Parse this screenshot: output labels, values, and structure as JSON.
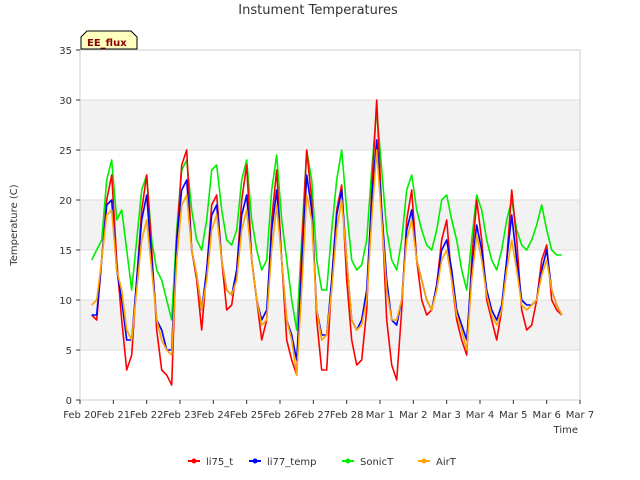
{
  "chart_data": {
    "type": "line",
    "title": "Instument Temperatures",
    "xlabel": "Time",
    "ylabel": "Temperature (C)",
    "badge": "EE_flux",
    "xlim": [
      20,
      35
    ],
    "ylim": [
      0,
      35
    ],
    "x_ticks": [
      {
        "v": 20,
        "label": "Feb 20"
      },
      {
        "v": 21,
        "label": "Feb 21"
      },
      {
        "v": 22,
        "label": "Feb 22"
      },
      {
        "v": 23,
        "label": "Feb 23"
      },
      {
        "v": 24,
        "label": "Feb 24"
      },
      {
        "v": 25,
        "label": "Feb 25"
      },
      {
        "v": 26,
        "label": "Feb 26"
      },
      {
        "v": 27,
        "label": "Feb 27"
      },
      {
        "v": 28,
        "label": "Feb 28"
      },
      {
        "v": 29,
        "label": "Mar 1"
      },
      {
        "v": 30,
        "label": "Mar 2"
      },
      {
        "v": 31,
        "label": "Mar 3"
      },
      {
        "v": 32,
        "label": "Mar 4"
      },
      {
        "v": 33,
        "label": "Mar 5"
      },
      {
        "v": 34,
        "label": "Mar 6"
      },
      {
        "v": 35,
        "label": "Mar 7"
      }
    ],
    "y_ticks": [
      0,
      5,
      10,
      15,
      20,
      25,
      30,
      35
    ],
    "grid": true,
    "legend_position": "bottom",
    "x": [
      20.35,
      20.5,
      20.65,
      20.8,
      20.95,
      21.1,
      21.25,
      21.4,
      21.55,
      21.7,
      21.85,
      22.0,
      22.15,
      22.3,
      22.45,
      22.6,
      22.75,
      22.9,
      23.05,
      23.2,
      23.35,
      23.5,
      23.65,
      23.8,
      23.95,
      24.1,
      24.25,
      24.4,
      24.55,
      24.7,
      24.85,
      25.0,
      25.15,
      25.3,
      25.45,
      25.6,
      25.75,
      25.9,
      26.05,
      26.2,
      26.35,
      26.5,
      26.65,
      26.8,
      26.95,
      27.1,
      27.25,
      27.4,
      27.55,
      27.7,
      27.85,
      28.0,
      28.15,
      28.3,
      28.45,
      28.6,
      28.75,
      28.9,
      29.05,
      29.2,
      29.35,
      29.5,
      29.65,
      29.8,
      29.95,
      30.1,
      30.25,
      30.4,
      30.55,
      30.7,
      30.85,
      31.0,
      31.15,
      31.3,
      31.45,
      31.6,
      31.75,
      31.9,
      32.05,
      32.2,
      32.35,
      32.5,
      32.65,
      32.8,
      32.95,
      33.1,
      33.25,
      33.4,
      33.55,
      33.7,
      33.85,
      34.0,
      34.15,
      34.3,
      34.45
    ],
    "series": [
      {
        "name": "li75_t",
        "color": "#ff0000",
        "values": [
          8.5,
          8.0,
          14.0,
          20.0,
          22.5,
          14.0,
          8.0,
          3.0,
          4.5,
          12.0,
          19.0,
          22.5,
          15.0,
          7.0,
          3.0,
          2.5,
          1.5,
          16.0,
          23.5,
          25.0,
          15.0,
          12.0,
          7.0,
          13.0,
          19.5,
          20.5,
          14.0,
          9.0,
          9.5,
          13.0,
          20.0,
          23.5,
          14.0,
          10.0,
          6.0,
          8.0,
          18.0,
          23.0,
          14.0,
          6.0,
          4.0,
          2.5,
          15.0,
          25.0,
          20.0,
          8.0,
          3.0,
          3.0,
          12.0,
          19.0,
          21.5,
          12.0,
          6.0,
          3.5,
          4.0,
          9.0,
          21.0,
          30.0,
          19.0,
          8.0,
          3.5,
          2.0,
          9.0,
          18.0,
          21.0,
          14.0,
          10.0,
          8.5,
          9.0,
          11.5,
          16.0,
          18.0,
          12.0,
          8.0,
          6.0,
          4.5,
          14.0,
          20.0,
          16.0,
          10.0,
          8.0,
          6.0,
          9.0,
          14.0,
          21.0,
          16.0,
          9.0,
          7.0,
          7.5,
          10.0,
          14.0,
          15.5,
          10.0,
          9.0,
          8.5
        ]
      },
      {
        "name": "li77_temp",
        "color": "#0000ff",
        "values": [
          8.5,
          8.5,
          14.0,
          19.5,
          20.0,
          13.0,
          10.0,
          6.0,
          6.0,
          12.0,
          18.0,
          20.5,
          14.0,
          8.0,
          7.0,
          5.0,
          5.0,
          16.0,
          21.0,
          22.0,
          15.0,
          12.5,
          9.0,
          13.0,
          18.5,
          19.5,
          14.0,
          11.0,
          10.5,
          13.0,
          18.5,
          20.5,
          14.0,
          10.0,
          8.0,
          9.0,
          17.0,
          21.0,
          14.0,
          8.0,
          6.5,
          4.0,
          13.0,
          22.5,
          19.0,
          9.0,
          6.5,
          6.5,
          12.0,
          18.5,
          21.0,
          14.0,
          8.0,
          7.0,
          8.0,
          11.0,
          20.0,
          26.0,
          19.0,
          12.0,
          8.0,
          7.5,
          10.0,
          17.0,
          19.0,
          14.0,
          12.0,
          10.0,
          9.0,
          11.5,
          15.0,
          16.0,
          13.0,
          9.0,
          7.5,
          6.0,
          13.0,
          17.5,
          15.0,
          11.0,
          9.0,
          8.0,
          9.5,
          14.0,
          18.5,
          14.0,
          10.0,
          9.5,
          9.5,
          10.0,
          13.0,
          15.0,
          11.0,
          9.5,
          8.5
        ]
      },
      {
        "name": "SonicT",
        "color": "#00ee00",
        "values": [
          14.0,
          15.0,
          16.0,
          22.0,
          24.0,
          18.0,
          19.0,
          15.0,
          11.0,
          16.0,
          21.0,
          22.5,
          16.0,
          13.0,
          12.0,
          10.0,
          8.0,
          17.0,
          23.0,
          24.0,
          19.0,
          16.0,
          15.0,
          18.0,
          23.0,
          23.5,
          19.0,
          16.0,
          15.5,
          17.0,
          22.0,
          24.0,
          18.0,
          15.0,
          13.0,
          14.0,
          21.0,
          24.5,
          18.0,
          14.0,
          10.0,
          7.0,
          16.0,
          25.0,
          22.0,
          14.0,
          11.0,
          11.0,
          17.0,
          22.0,
          25.0,
          19.0,
          14.0,
          13.0,
          13.5,
          16.0,
          23.0,
          29.0,
          23.0,
          17.0,
          14.0,
          13.0,
          16.0,
          21.0,
          22.5,
          19.0,
          17.0,
          15.5,
          15.0,
          17.0,
          20.0,
          20.5,
          18.0,
          16.0,
          13.0,
          11.0,
          16.0,
          20.5,
          19.0,
          16.0,
          14.0,
          13.0,
          15.0,
          18.0,
          20.0,
          17.0,
          15.5,
          15.0,
          16.0,
          17.5,
          19.5,
          17.0,
          15.0,
          14.5,
          14.5
        ]
      },
      {
        "name": "AirT",
        "color": "#ffa500",
        "values": [
          9.5,
          10.0,
          14.0,
          18.5,
          19.0,
          13.0,
          11.0,
          7.0,
          6.0,
          11.0,
          16.0,
          18.0,
          13.0,
          8.0,
          6.0,
          5.0,
          4.5,
          14.0,
          19.5,
          20.5,
          15.0,
          12.5,
          9.0,
          12.0,
          17.0,
          18.5,
          14.0,
          11.0,
          10.5,
          12.0,
          17.0,
          19.0,
          14.0,
          10.0,
          7.5,
          8.0,
          15.0,
          19.5,
          14.0,
          8.0,
          6.0,
          2.5,
          11.0,
          20.5,
          18.0,
          9.0,
          6.0,
          6.5,
          11.0,
          17.0,
          20.0,
          14.0,
          8.0,
          7.0,
          7.5,
          10.0,
          18.0,
          25.0,
          18.0,
          11.0,
          8.0,
          8.0,
          10.0,
          16.0,
          18.0,
          14.0,
          12.0,
          10.0,
          9.0,
          11.0,
          14.0,
          15.0,
          12.0,
          8.5,
          7.0,
          5.0,
          12.0,
          16.5,
          14.0,
          10.5,
          8.5,
          7.5,
          9.0,
          13.0,
          16.0,
          13.0,
          9.5,
          9.0,
          9.5,
          10.0,
          12.5,
          14.0,
          11.0,
          9.5,
          8.5
        ]
      }
    ]
  }
}
